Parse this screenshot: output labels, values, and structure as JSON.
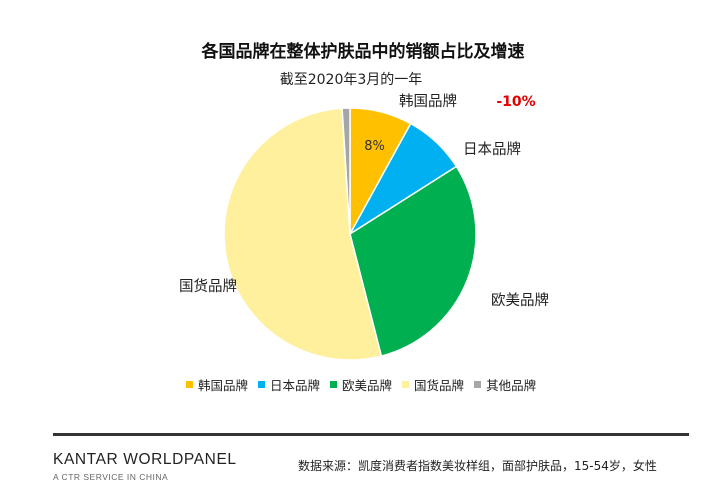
{
  "chart_data": {
    "type": "pie",
    "title": "各国品牌在整体护肤品中的销额占比及增速",
    "subtitle": "截至2020年3月的一年",
    "slices": [
      {
        "name": "韩国品牌",
        "value": 8,
        "color": "#FFC000",
        "data_label": "8%",
        "growth": "-10%"
      },
      {
        "name": "日本品牌",
        "value": 8,
        "color": "#00B0F0"
      },
      {
        "name": "欧美品牌",
        "value": 30,
        "color": "#00B050"
      },
      {
        "name": "国货品牌",
        "value": 53,
        "color": "#FFF09E"
      },
      {
        "name": "其他品牌",
        "value": 1,
        "color": "#A6A6A6"
      }
    ],
    "growth_color": "#E00000",
    "legend_position": "bottom"
  },
  "footer": {
    "logo_main": "KANTAR WORLDPANEL",
    "logo_sub": "A CTR SERVICE IN CHINA",
    "source": "数据来源：凯度消费者指数美妆样组，面部护肤品，15-54岁，女性"
  }
}
